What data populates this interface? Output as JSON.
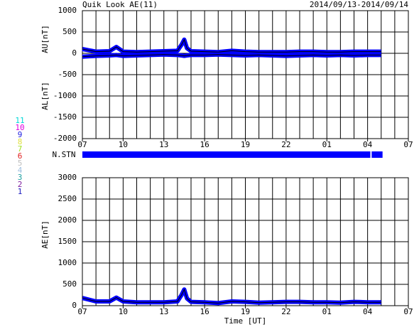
{
  "header": {
    "title": "Quik Look AE(11)",
    "date": "2014/09/13-2014/09/14"
  },
  "stations": [
    {
      "label": "11",
      "color": "#00d8d8"
    },
    {
      "label": "10",
      "color": "#e000e0"
    },
    {
      "label": "9",
      "color": "#2020e0"
    },
    {
      "label": "8",
      "color": "#e0e040"
    },
    {
      "label": "7",
      "color": "#a0e020"
    },
    {
      "label": "6",
      "color": "#e02020"
    },
    {
      "label": "5",
      "color": "#c0c0c0"
    },
    {
      "label": "4",
      "color": "#a0c0e0"
    },
    {
      "label": "3",
      "color": "#20a0a0"
    },
    {
      "label": "2",
      "color": "#8020a0"
    },
    {
      "label": "1",
      "color": "#2020c0"
    }
  ],
  "coverage": {
    "label": "N.STN",
    "color": "#0000ff",
    "segments": [
      [
        0,
        21.2
      ],
      [
        21.3,
        22.1
      ]
    ]
  },
  "chart_data": [
    {
      "type": "line",
      "x": [
        0,
        1,
        2,
        2.5,
        3,
        4,
        5,
        6,
        7,
        7.3,
        7.5,
        7.7,
        8,
        9,
        10,
        11,
        12,
        13,
        14,
        15,
        16,
        17,
        18,
        19,
        20,
        21,
        22
      ],
      "xlim": [
        0,
        24
      ],
      "xticks": [
        {
          "value": 0,
          "label": "07"
        },
        {
          "value": 3,
          "label": "10"
        },
        {
          "value": 6,
          "label": "13"
        },
        {
          "value": 9,
          "label": "16"
        },
        {
          "value": 12,
          "label": "19"
        },
        {
          "value": 15,
          "label": "22"
        },
        {
          "value": 18,
          "label": "01"
        },
        {
          "value": 21,
          "label": "04"
        },
        {
          "value": 24,
          "label": "07"
        }
      ],
      "xgrid": [
        0,
        1,
        2,
        3,
        4,
        5,
        6,
        7,
        8,
        9,
        10,
        11,
        12,
        13,
        14,
        15,
        16,
        17,
        18,
        19,
        20,
        21,
        22,
        23,
        24
      ],
      "ylim": [
        -2000,
        1000
      ],
      "yticks": [
        -2000,
        -1500,
        -1000,
        -500,
        0,
        500,
        1000
      ],
      "series": [
        {
          "name": "AU[nT]",
          "color": "#0000ff",
          "values": [
            100,
            40,
            50,
            150,
            40,
            30,
            40,
            50,
            60,
            200,
            320,
            120,
            50,
            40,
            30,
            60,
            40,
            30,
            30,
            30,
            40,
            40,
            30,
            30,
            40,
            40,
            40
          ]
        },
        {
          "name": "AL[nT]",
          "color": "#0000ff",
          "values": [
            -80,
            -60,
            -50,
            -40,
            -60,
            -50,
            -40,
            -30,
            -40,
            -50,
            -60,
            -50,
            -40,
            -40,
            -30,
            -40,
            -50,
            -40,
            -50,
            -60,
            -50,
            -40,
            -50,
            -40,
            -50,
            -40,
            -40
          ]
        }
      ]
    },
    {
      "type": "line",
      "x": [
        0,
        1,
        2,
        2.5,
        3,
        4,
        5,
        6,
        7,
        7.3,
        7.5,
        7.7,
        8,
        9,
        10,
        11,
        12,
        13,
        14,
        15,
        16,
        17,
        18,
        19,
        20,
        21,
        22
      ],
      "xlim": [
        0,
        24
      ],
      "xticks": [
        {
          "value": 0,
          "label": "07"
        },
        {
          "value": 3,
          "label": "10"
        },
        {
          "value": 6,
          "label": "13"
        },
        {
          "value": 9,
          "label": "16"
        },
        {
          "value": 12,
          "label": "19"
        },
        {
          "value": 15,
          "label": "22"
        },
        {
          "value": 18,
          "label": "01"
        },
        {
          "value": 21,
          "label": "04"
        },
        {
          "value": 24,
          "label": "07"
        }
      ],
      "xgrid": [
        0,
        1,
        2,
        3,
        4,
        5,
        6,
        7,
        8,
        9,
        10,
        11,
        12,
        13,
        14,
        15,
        16,
        17,
        18,
        19,
        20,
        21,
        22,
        23,
        24
      ],
      "xlabel": "Time [UT]",
      "ylim": [
        0,
        3000
      ],
      "yticks": [
        0,
        500,
        1000,
        1500,
        2000,
        2500,
        3000
      ],
      "series": [
        {
          "name": "AE[nT]",
          "color": "#0000ff",
          "values": [
            180,
            100,
            100,
            190,
            100,
            80,
            80,
            80,
            100,
            250,
            380,
            170,
            90,
            80,
            60,
            100,
            90,
            70,
            80,
            90,
            90,
            80,
            80,
            70,
            90,
            80,
            80
          ]
        }
      ]
    }
  ]
}
